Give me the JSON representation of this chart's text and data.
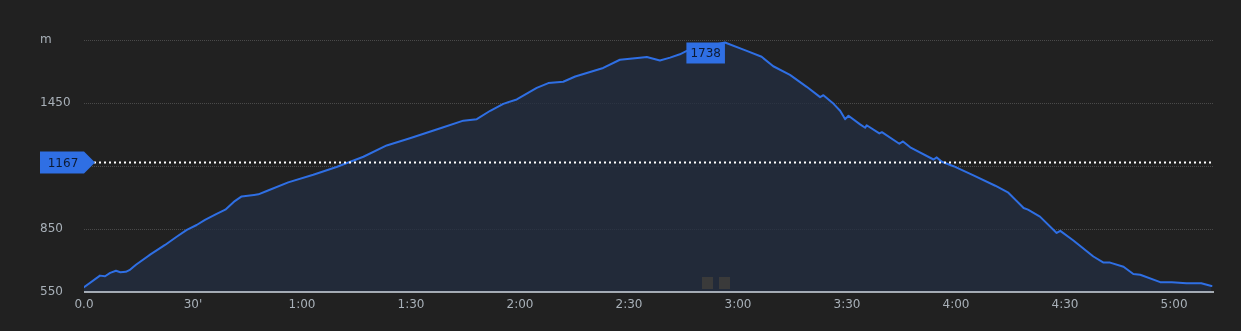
{
  "chart_data": {
    "type": "area",
    "x": [
      0,
      4.4,
      5.8,
      7.2,
      8.8,
      10,
      11.5,
      12.5,
      14.3,
      18.3,
      22.3,
      25.5,
      28.3,
      31,
      33.3,
      36.5,
      38.9,
      41.5,
      43.4,
      48,
      50.3,
      56.2,
      63.1,
      69.5,
      76.9,
      83.3,
      89.7,
      98.5,
      104.4,
      108.1,
      111.8,
      115.4,
      119.1,
      124.6,
      127.8,
      131.9,
      135.2,
      142.9,
      147.5,
      153,
      154.9,
      158.5,
      161.3,
      164,
      165.9,
      176.4,
      182.4,
      186.5,
      189.7,
      194.3,
      198.9,
      202.6,
      203.5,
      206.3,
      208.1,
      209.5,
      210.4,
      213.6,
      215,
      215.4,
      218.9,
      219.6,
      224.4,
      225.4,
      227.4,
      233.8,
      234.7,
      236.1,
      239.3,
      244.8,
      250.8,
      254.4,
      258.6,
      259.8,
      263.1,
      267.7,
      268.7,
      272.3,
      277.8,
      280.6,
      282.4,
      286.1,
      288.8,
      290.7,
      296.2,
      299.4,
      303.4,
      307.5,
      310.3
    ],
    "series": [
      {
        "color": "#2f6fe4",
        "values": [
          573,
          628,
          625,
          641,
          651,
          644,
          646,
          654,
          680,
          729,
          774,
          813,
          846,
          869,
          893,
          922,
          942,
          983,
          1005,
          1015,
          1031,
          1072,
          1108,
          1145,
          1194,
          1248,
          1282,
          1332,
          1366,
          1373,
          1413,
          1446,
          1467,
          1522,
          1545,
          1551,
          1576,
          1617,
          1656,
          1666,
          1669,
          1652,
          1666,
          1682,
          1698,
          1738,
          1698,
          1670,
          1625,
          1584,
          1527,
          1478,
          1487,
          1446,
          1413,
          1373,
          1389,
          1348,
          1332,
          1344,
          1305,
          1311,
          1256,
          1267,
          1239,
          1181,
          1191,
          1170,
          1149,
          1105,
          1056,
          1023,
          950,
          942,
          909,
          831,
          841,
          795,
          719,
          690,
          690,
          670,
          636,
          632,
          597,
          597,
          592,
          592,
          579
        ]
      }
    ],
    "xlim": [
      0,
      311
    ],
    "xticks": [
      {
        "value": 0,
        "label": "0.0"
      },
      {
        "value": 30,
        "label": "30'"
      },
      {
        "value": 60,
        "label": "1:00"
      },
      {
        "value": 90,
        "label": "1:30"
      },
      {
        "value": 120,
        "label": "2:00"
      },
      {
        "value": 150,
        "label": "2:30"
      },
      {
        "value": 180,
        "label": "3:00"
      },
      {
        "value": 210,
        "label": "3:30"
      },
      {
        "value": 240,
        "label": "4:00"
      },
      {
        "value": 270,
        "label": "4:30"
      },
      {
        "value": 300,
        "label": "5:00"
      }
    ],
    "ylim": [
      550,
      1750
    ],
    "yticks": [
      550,
      850,
      {
        "value": 1150,
        "label": null
      },
      1450,
      {
        "value": 1750,
        "label": "m"
      }
    ],
    "ref_lines": [
      {
        "axis": "y",
        "value": 1167,
        "label": "1167",
        "color": "#ffffff",
        "line_style": "dotted"
      }
    ],
    "annotations": [
      {
        "text": "1738",
        "x": 176.4,
        "y": 1738
      }
    ],
    "grid": "y",
    "legend": false,
    "marker": "none",
    "line_style": "solid"
  }
}
